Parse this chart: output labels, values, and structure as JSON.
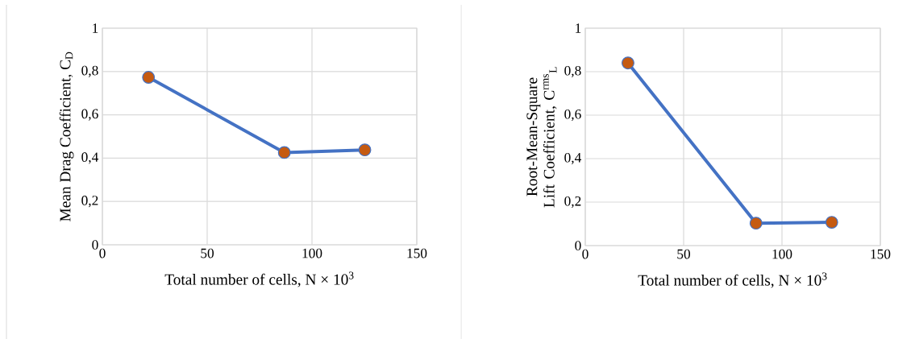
{
  "chart_data": [
    {
      "type": "line",
      "xlabel": "Total number of cells, N × 10$^{3}$",
      "ylabel": "Mean Drag Coefficient, C$_{D}$",
      "x": [
        22,
        86.8,
        125.2
      ],
      "series": [
        {
          "color": "#4472c4",
          "colors": [
            "#c55a11",
            "#c55a11",
            "#c55a11"
          ],
          "values": [
            0.773,
            0.426,
            0.438
          ]
        }
      ],
      "xlim": [
        0,
        150
      ],
      "xticks": [
        0,
        50,
        100,
        150
      ],
      "ylim": [
        0,
        1
      ],
      "yticks": [
        0,
        {
          "value": 0.2,
          "label": "0,2"
        },
        {
          "value": 0.4,
          "label": "0,4"
        },
        {
          "value": 0.6,
          "label": "0,6"
        },
        {
          "value": 0.8,
          "label": "0,8"
        },
        1
      ],
      "grid": true,
      "marker": "circle",
      "line_style": "solid"
    },
    {
      "type": "line",
      "xlabel": "Total number of cells, N × 10$^{3}$",
      "ylabel": "Root-Mean-Square Lift Coefficient, C$^{rms}$$_{L}$",
      "x": [
        21.7,
        86.8,
        125.3
      ],
      "series": [
        {
          "color": "#4472c4",
          "colors": [
            "#c55a11",
            "#c55a11",
            "#c55a11"
          ],
          "values": [
            0.84,
            0.103,
            0.107
          ]
        }
      ],
      "xlim": [
        0,
        150
      ],
      "xticks": [
        0,
        50,
        100,
        150
      ],
      "ylim": [
        0,
        1
      ],
      "yticks": [
        0,
        {
          "value": 0.2,
          "label": "0,2"
        },
        {
          "value": 0.4,
          "label": "0,4"
        },
        {
          "value": 0.6,
          "label": "0,6"
        },
        {
          "value": 0.8,
          "label": "0,8"
        },
        1
      ],
      "grid": true,
      "marker": "circle",
      "line_style": "solid"
    }
  ]
}
